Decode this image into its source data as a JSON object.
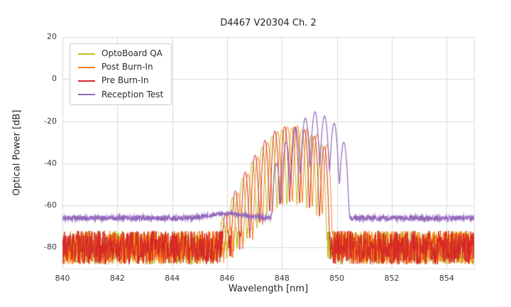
{
  "chart_data": {
    "type": "line",
    "title": "D4467 V20304 Ch. 2",
    "xlabel": "Wavelength [nm]",
    "ylabel": "Optical Power [dB]",
    "xlim": [
      840,
      855
    ],
    "ylim": [
      -90,
      20
    ],
    "xticks": [
      840,
      842,
      844,
      846,
      848,
      850,
      852,
      854
    ],
    "yticks": [
      20,
      0,
      -20,
      -40,
      -60,
      -80
    ],
    "grid": true,
    "legend_position": "upper left",
    "colors": {
      "grid": "#d9d9d9",
      "plot_border": "#dddddd",
      "text": "#3a3a3a",
      "legend_border": "#cccccc",
      "background": "#ffffff"
    },
    "series": [
      {
        "name": "OptoBoard QA",
        "color": "#bcbd22",
        "line_width": 1.0,
        "seed": 11,
        "noise_floor_db": -80,
        "noise_amplitude_db": 8,
        "mode_width_nm": 0.06,
        "peaks": [
          [
            845.84,
            -66
          ],
          [
            846.2,
            -56
          ],
          [
            846.56,
            -47
          ],
          [
            846.92,
            -39
          ],
          [
            847.28,
            -32
          ],
          [
            847.64,
            -27
          ],
          [
            848.0,
            -24
          ],
          [
            848.36,
            -23
          ],
          [
            848.72,
            -24
          ],
          [
            849.08,
            -26.5
          ],
          [
            849.44,
            -31
          ]
        ]
      },
      {
        "name": "Post Burn-In",
        "color": "#ff7f0e",
        "line_width": 1.0,
        "seed": 22,
        "noise_floor_db": -80,
        "noise_amplitude_db": 8,
        "mode_width_nm": 0.06,
        "peaks": [
          [
            846.04,
            -64
          ],
          [
            846.4,
            -54
          ],
          [
            846.76,
            -45
          ],
          [
            847.12,
            -37
          ],
          [
            847.48,
            -30
          ],
          [
            847.84,
            -25
          ],
          [
            848.2,
            -22.5
          ],
          [
            848.56,
            -22
          ],
          [
            848.92,
            -23.5
          ],
          [
            849.28,
            -26
          ],
          [
            849.64,
            -31
          ]
        ]
      },
      {
        "name": "Pre Burn-In",
        "color": "#d62728",
        "line_width": 1.0,
        "seed": 33,
        "noise_floor_db": -80,
        "noise_amplitude_db": 8,
        "mode_width_nm": 0.06,
        "peaks": [
          [
            845.94,
            -64
          ],
          [
            846.3,
            -53
          ],
          [
            846.66,
            -44
          ],
          [
            847.02,
            -36
          ],
          [
            847.38,
            -29
          ],
          [
            847.74,
            -24.5
          ],
          [
            848.1,
            -22.5
          ],
          [
            848.46,
            -22.5
          ],
          [
            848.82,
            -24
          ],
          [
            849.18,
            -27
          ],
          [
            849.54,
            -32
          ]
        ]
      },
      {
        "name": "Reception Test",
        "color": "#9467bd",
        "line_width": 1.2,
        "seed": 44,
        "noise_floor_db": -66,
        "noise_amplitude_db": 1.2,
        "mode_width_nm": 0.07,
        "peaks": [
          [
            846.0,
            -68,
            0.8
          ],
          [
            847.8,
            -40
          ],
          [
            848.15,
            -30
          ],
          [
            848.5,
            -23
          ],
          [
            848.85,
            -18.5
          ],
          [
            849.2,
            -15.5
          ],
          [
            849.55,
            -17.5
          ],
          [
            849.9,
            -21
          ],
          [
            850.25,
            -30
          ]
        ]
      }
    ]
  }
}
